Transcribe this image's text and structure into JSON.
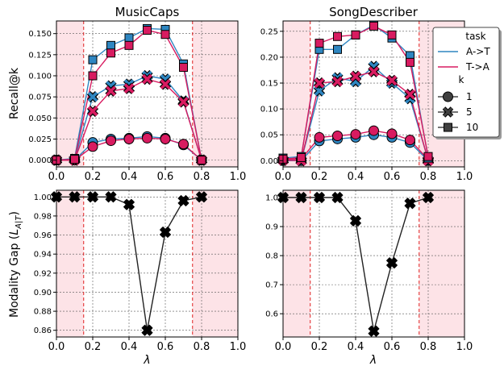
{
  "colors": {
    "a2t": "#2e86c1",
    "t2a": "#d81b60",
    "shade": "#fde3e7",
    "vline": "#e02020",
    "gap_line": "#222222",
    "grid": "#555555"
  },
  "chart_data": [
    {
      "type": "line",
      "title": "MusicCaps",
      "xlabel": "",
      "ylabel": "Recall@k",
      "xlim": [
        0.0,
        1.0
      ],
      "ylim": [
        -0.008,
        0.165
      ],
      "xticks": [
        "0.0",
        "0.2",
        "0.4",
        "0.6",
        "0.8",
        "1.0"
      ],
      "yticks": [
        "0.000",
        "0.025",
        "0.050",
        "0.075",
        "0.100",
        "0.125",
        "0.150"
      ],
      "shaded_regions": [
        [
          0.0,
          0.15
        ],
        [
          0.75,
          1.0
        ]
      ],
      "vlines": [
        0.15,
        0.75
      ],
      "grid": true,
      "x": [
        0.0,
        0.1,
        0.2,
        0.3,
        0.4,
        0.5,
        0.6,
        0.7,
        0.8
      ],
      "series": [
        {
          "task": "A->T",
          "k": "1",
          "marker": "circle",
          "values": [
            0.0,
            0.0,
            0.021,
            0.025,
            0.026,
            0.028,
            0.026,
            0.018,
            0.0
          ]
        },
        {
          "task": "T->A",
          "k": "1",
          "marker": "circle",
          "values": [
            0.0,
            0.0,
            0.016,
            0.023,
            0.025,
            0.026,
            0.025,
            0.019,
            0.0
          ]
        },
        {
          "task": "A->T",
          "k": "5",
          "marker": "x",
          "values": [
            0.0,
            0.001,
            0.075,
            0.088,
            0.09,
            0.1,
            0.096,
            0.07,
            0.0
          ]
        },
        {
          "task": "T->A",
          "k": "5",
          "marker": "x",
          "values": [
            0.0,
            0.0,
            0.058,
            0.082,
            0.085,
            0.096,
            0.09,
            0.069,
            0.0
          ]
        },
        {
          "task": "A->T",
          "k": "10",
          "marker": "square",
          "values": [
            0.0,
            0.002,
            0.119,
            0.136,
            0.145,
            0.156,
            0.155,
            0.114,
            0.0
          ]
        },
        {
          "task": "T->A",
          "k": "10",
          "marker": "square",
          "values": [
            0.0,
            0.001,
            0.1,
            0.127,
            0.136,
            0.154,
            0.149,
            0.11,
            0.0
          ]
        }
      ]
    },
    {
      "type": "line",
      "title": "SongDescriber",
      "xlabel": "",
      "ylabel": "",
      "xlim": [
        0.0,
        1.0
      ],
      "ylim": [
        -0.012,
        0.27
      ],
      "xticks": [
        "0.0",
        "0.2",
        "0.4",
        "0.6",
        "0.8",
        "1.0"
      ],
      "yticks": [
        "0.00",
        "0.05",
        "0.10",
        "0.15",
        "0.20",
        "0.25"
      ],
      "shaded_regions": [
        [
          0.0,
          0.15
        ],
        [
          0.75,
          1.0
        ]
      ],
      "vlines": [
        0.15,
        0.75
      ],
      "grid": true,
      "x": [
        0.0,
        0.1,
        0.2,
        0.3,
        0.4,
        0.5,
        0.6,
        0.7,
        0.8
      ],
      "series": [
        {
          "task": "A->T",
          "k": "1",
          "marker": "circle",
          "values": [
            0.0,
            0.0,
            0.038,
            0.042,
            0.045,
            0.05,
            0.045,
            0.035,
            0.0
          ]
        },
        {
          "task": "T->A",
          "k": "1",
          "marker": "circle",
          "values": [
            0.002,
            0.003,
            0.045,
            0.048,
            0.051,
            0.058,
            0.052,
            0.04,
            0.002
          ]
        },
        {
          "task": "A->T",
          "k": "5",
          "marker": "x",
          "values": [
            0.001,
            0.0,
            0.135,
            0.16,
            0.153,
            0.182,
            0.15,
            0.12,
            0.001
          ]
        },
        {
          "task": "T->A",
          "k": "5",
          "marker": "x",
          "values": [
            0.001,
            0.0,
            0.15,
            0.153,
            0.163,
            0.172,
            0.155,
            0.128,
            0.0
          ]
        },
        {
          "task": "A->T",
          "k": "10",
          "marker": "square",
          "values": [
            0.005,
            0.008,
            0.215,
            0.215,
            0.243,
            0.262,
            0.237,
            0.203,
            0.005
          ]
        },
        {
          "task": "T->A",
          "k": "10",
          "marker": "square",
          "values": [
            0.003,
            0.006,
            0.227,
            0.24,
            0.243,
            0.26,
            0.243,
            0.19,
            0.008
          ]
        }
      ]
    },
    {
      "type": "line",
      "title": "",
      "xlabel": "λ",
      "ylabel": "Modality Gap (L_A|T)",
      "xlim": [
        0.0,
        1.0
      ],
      "ylim": [
        0.853,
        1.007
      ],
      "xticks": [
        "0.0",
        "0.2",
        "0.4",
        "0.6",
        "0.8",
        "1.0"
      ],
      "yticks": [
        "0.86",
        "0.88",
        "0.90",
        "0.92",
        "0.94",
        "0.96",
        "0.98",
        "1.00"
      ],
      "shaded_regions": [
        [
          0.0,
          0.15
        ],
        [
          0.75,
          1.0
        ]
      ],
      "vlines": [
        0.15,
        0.75
      ],
      "grid": true,
      "x": [
        0.0,
        0.1,
        0.2,
        0.3,
        0.4,
        0.5,
        0.6,
        0.7,
        0.8
      ],
      "series": [
        {
          "marker": "x",
          "values": [
            1.0,
            1.0,
            1.0,
            1.0,
            0.992,
            0.86,
            0.963,
            0.996,
            1.0
          ]
        }
      ]
    },
    {
      "type": "line",
      "title": "",
      "xlabel": "λ",
      "ylabel": "",
      "xlim": [
        0.0,
        1.0
      ],
      "ylim": [
        0.52,
        1.025
      ],
      "xticks": [
        "0.0",
        "0.2",
        "0.4",
        "0.6",
        "0.8",
        "1.0"
      ],
      "yticks": [
        "0.6",
        "0.7",
        "0.8",
        "0.9",
        "1.0"
      ],
      "shaded_regions": [
        [
          0.0,
          0.15
        ],
        [
          0.75,
          1.0
        ]
      ],
      "vlines": [
        0.15,
        0.75
      ],
      "grid": true,
      "x": [
        0.0,
        0.1,
        0.2,
        0.3,
        0.4,
        0.5,
        0.6,
        0.7,
        0.8
      ],
      "series": [
        {
          "marker": "x",
          "values": [
            1.0,
            1.0,
            1.0,
            1.0,
            0.92,
            0.54,
            0.775,
            0.98,
            1.0
          ]
        }
      ]
    }
  ],
  "legend": {
    "placement": "right of top-right panel",
    "task_header": "task",
    "tasks": [
      {
        "label": "A->T",
        "color": "#2e86c1"
      },
      {
        "label": "T->A",
        "color": "#d81b60"
      }
    ],
    "k_header": "k",
    "ks": [
      {
        "label": "1",
        "marker": "circle"
      },
      {
        "label": "5",
        "marker": "x"
      },
      {
        "label": "10",
        "marker": "square"
      }
    ]
  }
}
